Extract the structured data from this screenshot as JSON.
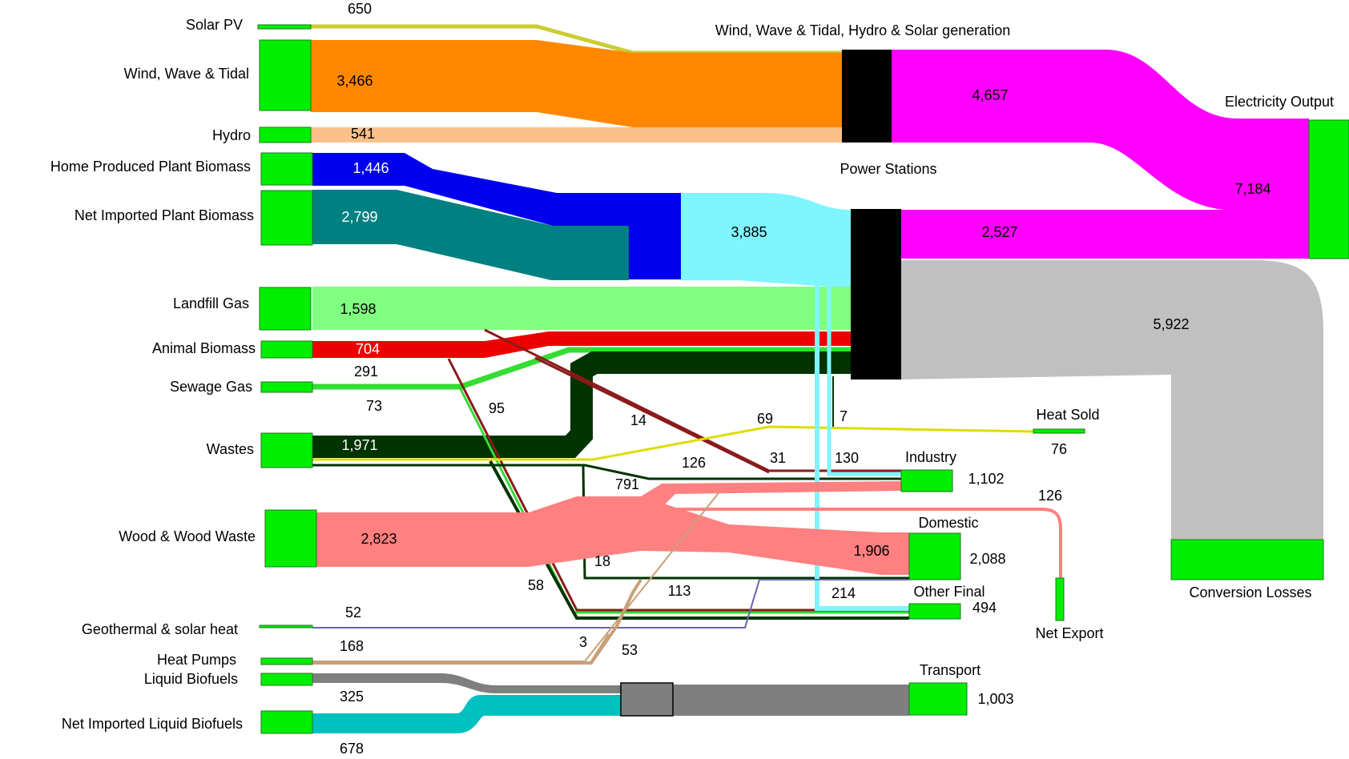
{
  "colors": {
    "box": "#00ee00",
    "box_stroke": "#1a7a1a",
    "solar": "#cccc33",
    "wind": "#ff8800",
    "hydro": "#fbc089",
    "home_biomass": "#0000ee",
    "imported_biomass": "#008080",
    "biomass_to_power": "#7ff5ff",
    "landfill": "#80ff80",
    "animal": "#ee0000",
    "animal_thin": "#8b1a1a",
    "sewage": "#33dd33",
    "wastes": "#003300",
    "wastes_heat": "#dddd00",
    "wood": "#ff8080",
    "geo": "#6666aa",
    "heat_pumps": "#c8a078",
    "liquid": "#7f7f7f",
    "imported_liquid": "#00c0c0",
    "electricity": "#ff00ff",
    "losses": "#c0c0c0",
    "station": "#000000"
  },
  "sources": [
    {
      "key": "solar",
      "label": "Solar PV",
      "value": "650"
    },
    {
      "key": "wind",
      "label": "Wind, Wave & Tidal",
      "value": "3,466"
    },
    {
      "key": "hydro",
      "label": "Hydro",
      "value": "541"
    },
    {
      "key": "home_biomass",
      "label": "Home Produced Plant Biomass",
      "value": "1,446"
    },
    {
      "key": "imported_biomass",
      "label": "Net Imported Plant Biomass",
      "value": "2,799"
    },
    {
      "key": "landfill",
      "label": "Landfill Gas",
      "value": "1,598"
    },
    {
      "key": "animal",
      "label": "Animal Biomass",
      "value": "704"
    },
    {
      "key": "sewage",
      "label": "Sewage Gas",
      "value": "291"
    },
    {
      "key": "wastes",
      "label": "Wastes",
      "value": "1,971"
    },
    {
      "key": "wood",
      "label": "Wood & Wood Waste",
      "value": "2,823"
    },
    {
      "key": "geo",
      "label": "Geothermal & solar heat",
      "value": "52"
    },
    {
      "key": "heat_pumps",
      "label": "Heat Pumps",
      "value": "168"
    },
    {
      "key": "liquid",
      "label": "Liquid Biofuels",
      "value": "325"
    },
    {
      "key": "imported_liquid",
      "label": "Net Imported Liquid Biofuels",
      "value": "678"
    }
  ],
  "nodes": {
    "renewable_generation": "Wind, Wave & Tidal, Hydro & Solar generation",
    "power_stations": "Power Stations",
    "electricity_output": "Electricity Output",
    "conversion_losses": "Conversion Losses",
    "heat_sold": "Heat Sold",
    "industry": "Industry",
    "domestic": "Domestic",
    "other_final": "Other Final",
    "net_export": "Net Export",
    "transport": "Transport"
  },
  "flow_values": {
    "renewable_to_electricity": "4,657",
    "biomass_to_power": "3,885",
    "power_to_electricity": "2,527",
    "electricity_output": "7,184",
    "power_losses": "5,922",
    "sewage_other": "73",
    "animal_other": "95",
    "animal_industry": "14",
    "wastes_heat": "69",
    "power_heat": "7",
    "heat_sold": "76",
    "animal_domestic": "31",
    "biomass_industry": "130",
    "wastes_industry": "126",
    "industry": "1,102",
    "wood_industry": "791",
    "wood_export": "126",
    "wood_domestic": "1,906",
    "domestic": "2,088",
    "wastes_domestic": "18",
    "heatpump_domestic": "113",
    "biomass_other": "214",
    "other_final": "494",
    "sewage_domestic": "58",
    "heatpump_industry": "3",
    "heatpump_other": "53",
    "transport": "1,003"
  }
}
